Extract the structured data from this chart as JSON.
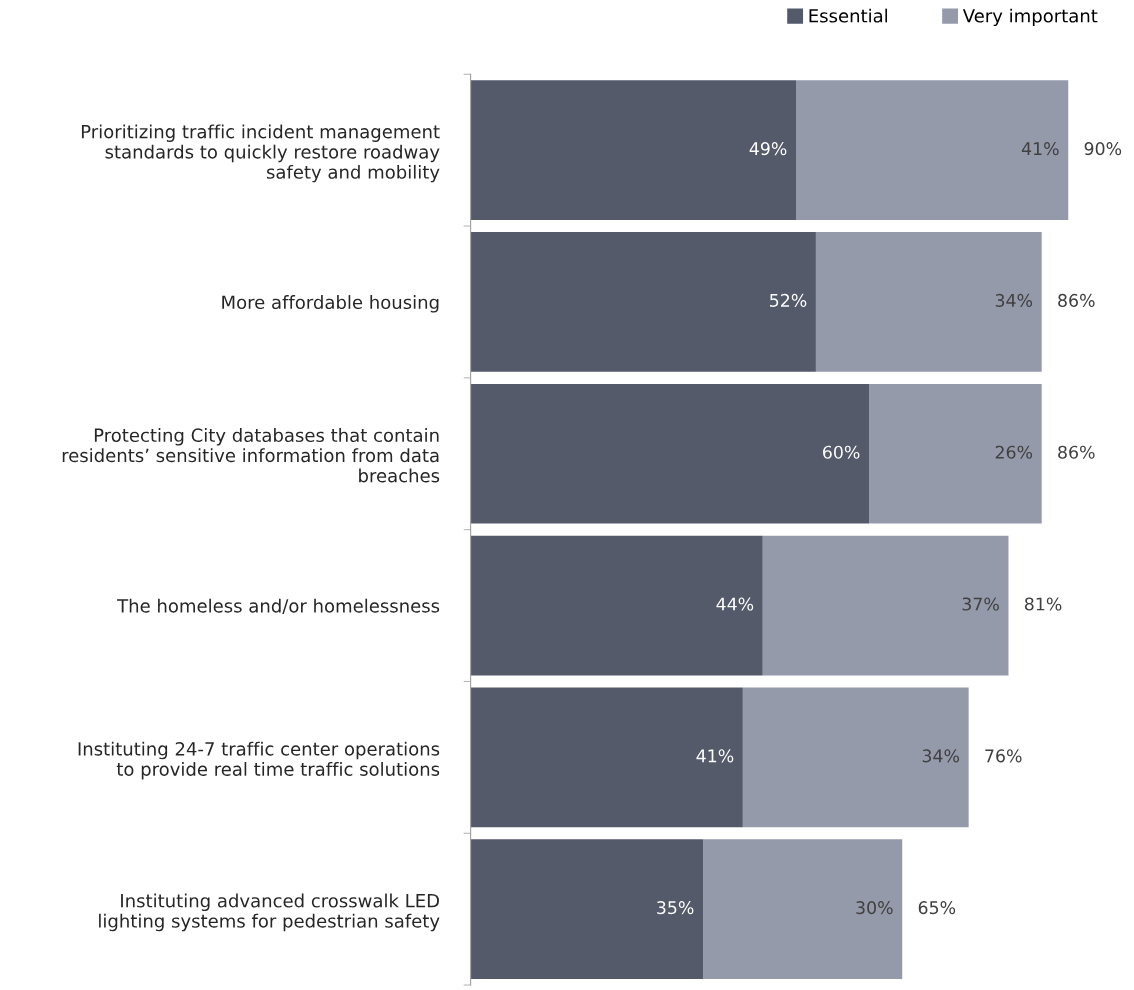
{
  "chart_data": {
    "type": "bar",
    "orientation": "horizontal",
    "stacked": true,
    "categories": [
      "Prioritizing traffic incident management\nstandards to quickly restore roadway\nsafety and mobility",
      "More affordable housing",
      "Protecting City databases that contain\nresidents’ sensitive information from data\nbreaches",
      "The homeless and/or homelessness",
      "Instituting 24-7 traffic center operations\nto provide real time traffic solutions",
      "Instituting advanced crosswalk LED\nlighting systems for pedestrian safety"
    ],
    "series": [
      {
        "name": "Essential",
        "color": "#545a6a",
        "values": [
          49,
          52,
          60,
          44,
          41,
          35
        ],
        "value_labels": [
          "49%",
          "52%",
          "60%",
          "44%",
          "41%",
          "35%"
        ]
      },
      {
        "name": "Very important",
        "color": "#959aab",
        "values": [
          41,
          34,
          26,
          37,
          34,
          30
        ],
        "value_labels": [
          "41%",
          "34%",
          "26%",
          "37%",
          "34%",
          "30%"
        ]
      }
    ],
    "totals": [
      "90%",
      "86%",
      "86%",
      "81%",
      "76%",
      "65%"
    ],
    "tick_labels": "y",
    "grid": false,
    "legend": "top right"
  }
}
